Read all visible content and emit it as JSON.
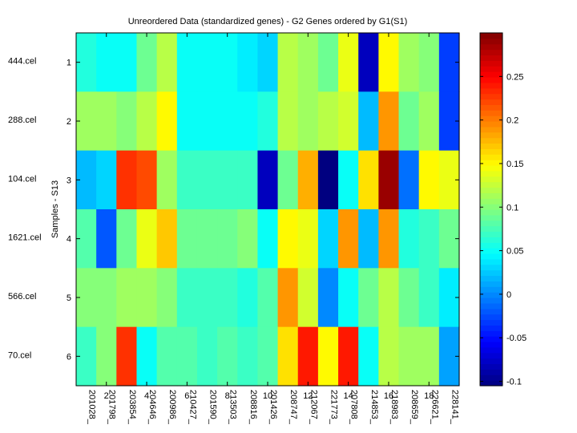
{
  "chart_data": {
    "type": "heatmap",
    "title": "Unreordered Data (standardized genes) - G2 Genes ordered by G1(S1)",
    "ylabel": "Samples - S13",
    "row_ticks": [
      "1",
      "2",
      "3",
      "4",
      "5",
      "6"
    ],
    "row_labels": [
      "444.cel",
      "288.cel",
      "104.cel",
      "1621.cel",
      "566.cel",
      "70.cel"
    ],
    "col_ticks": [
      "2",
      "4",
      "6",
      "8",
      "10",
      "12",
      "14",
      "16",
      "18"
    ],
    "col_labels": [
      "201028_",
      "201798_",
      "203854_",
      "204646_",
      "200986_",
      "210427_",
      "201590_",
      "213503_",
      "208816_",
      "201426_",
      "208747_",
      "212067_",
      "221773_",
      "207808_",
      "214853_",
      "218983_",
      "208659_",
      "226621_",
      "228141_"
    ],
    "values": [
      [
        0.06,
        0.05,
        0.05,
        0.09,
        0.12,
        0.05,
        0.05,
        0.05,
        0.04,
        0.03,
        0.12,
        0.11,
        0.09,
        0.14,
        -0.08,
        0.15,
        0.11,
        0.1,
        -0.03
      ],
      [
        0.11,
        0.11,
        0.1,
        0.12,
        0.15,
        0.05,
        0.05,
        0.05,
        0.05,
        0.06,
        0.12,
        0.11,
        0.12,
        0.13,
        0.02,
        0.19,
        0.09,
        0.11,
        -0.03
      ],
      [
        0.02,
        0.03,
        0.23,
        0.22,
        0.11,
        0.07,
        0.07,
        0.07,
        0.07,
        -0.08,
        0.09,
        0.18,
        -0.11,
        0.05,
        0.16,
        0.29,
        -0.01,
        0.15,
        0.14
      ],
      [
        0.08,
        -0.02,
        0.09,
        0.14,
        0.17,
        0.09,
        0.09,
        0.09,
        0.1,
        0.05,
        0.15,
        0.14,
        0.03,
        0.19,
        0.02,
        0.19,
        0.06,
        0.07,
        0.09
      ],
      [
        0.1,
        0.1,
        0.11,
        0.11,
        0.1,
        0.07,
        0.07,
        0.07,
        0.06,
        0.08,
        0.19,
        0.13,
        0.0,
        0.05,
        0.09,
        0.12,
        0.09,
        0.07,
        0.04
      ],
      [
        0.07,
        0.1,
        0.23,
        0.05,
        0.08,
        0.08,
        0.07,
        0.08,
        0.07,
        0.08,
        0.16,
        0.24,
        0.15,
        0.24,
        0.05,
        0.12,
        0.11,
        0.11,
        0.01
      ]
    ],
    "clim": [
      -0.105,
      0.3
    ],
    "colorbar_ticks": [
      -0.1,
      -0.05,
      0,
      0.05,
      0.1,
      0.15,
      0.2,
      0.25
    ],
    "colorbar_tick_labels": [
      "-0.1",
      "-0.05",
      "0",
      "0.05",
      "0.1",
      "0.15",
      "0.2",
      "0.25"
    ],
    "colormap": "jet"
  }
}
